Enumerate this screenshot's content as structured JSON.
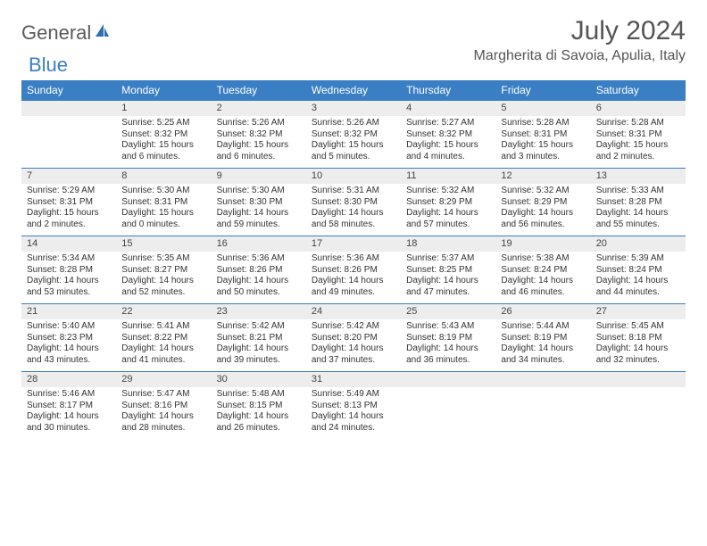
{
  "brand": {
    "general": "General",
    "blue": "Blue"
  },
  "title": "July 2024",
  "location": "Margherita di Savoia, Apulia, Italy",
  "colors": {
    "header_bg": "#3a7fc4",
    "header_text": "#ffffff",
    "daynum_bg": "#ededed",
    "divider": "#3a7fc4",
    "body_text": "#333333",
    "title_text": "#555555"
  },
  "weekdays": [
    "Sunday",
    "Monday",
    "Tuesday",
    "Wednesday",
    "Thursday",
    "Friday",
    "Saturday"
  ],
  "weeks": [
    [
      {
        "n": "",
        "sr": "",
        "ss": "",
        "dl": ""
      },
      {
        "n": "1",
        "sr": "Sunrise: 5:25 AM",
        "ss": "Sunset: 8:32 PM",
        "dl": "Daylight: 15 hours and 6 minutes."
      },
      {
        "n": "2",
        "sr": "Sunrise: 5:26 AM",
        "ss": "Sunset: 8:32 PM",
        "dl": "Daylight: 15 hours and 6 minutes."
      },
      {
        "n": "3",
        "sr": "Sunrise: 5:26 AM",
        "ss": "Sunset: 8:32 PM",
        "dl": "Daylight: 15 hours and 5 minutes."
      },
      {
        "n": "4",
        "sr": "Sunrise: 5:27 AM",
        "ss": "Sunset: 8:32 PM",
        "dl": "Daylight: 15 hours and 4 minutes."
      },
      {
        "n": "5",
        "sr": "Sunrise: 5:28 AM",
        "ss": "Sunset: 8:31 PM",
        "dl": "Daylight: 15 hours and 3 minutes."
      },
      {
        "n": "6",
        "sr": "Sunrise: 5:28 AM",
        "ss": "Sunset: 8:31 PM",
        "dl": "Daylight: 15 hours and 2 minutes."
      }
    ],
    [
      {
        "n": "7",
        "sr": "Sunrise: 5:29 AM",
        "ss": "Sunset: 8:31 PM",
        "dl": "Daylight: 15 hours and 2 minutes."
      },
      {
        "n": "8",
        "sr": "Sunrise: 5:30 AM",
        "ss": "Sunset: 8:31 PM",
        "dl": "Daylight: 15 hours and 0 minutes."
      },
      {
        "n": "9",
        "sr": "Sunrise: 5:30 AM",
        "ss": "Sunset: 8:30 PM",
        "dl": "Daylight: 14 hours and 59 minutes."
      },
      {
        "n": "10",
        "sr": "Sunrise: 5:31 AM",
        "ss": "Sunset: 8:30 PM",
        "dl": "Daylight: 14 hours and 58 minutes."
      },
      {
        "n": "11",
        "sr": "Sunrise: 5:32 AM",
        "ss": "Sunset: 8:29 PM",
        "dl": "Daylight: 14 hours and 57 minutes."
      },
      {
        "n": "12",
        "sr": "Sunrise: 5:32 AM",
        "ss": "Sunset: 8:29 PM",
        "dl": "Daylight: 14 hours and 56 minutes."
      },
      {
        "n": "13",
        "sr": "Sunrise: 5:33 AM",
        "ss": "Sunset: 8:28 PM",
        "dl": "Daylight: 14 hours and 55 minutes."
      }
    ],
    [
      {
        "n": "14",
        "sr": "Sunrise: 5:34 AM",
        "ss": "Sunset: 8:28 PM",
        "dl": "Daylight: 14 hours and 53 minutes."
      },
      {
        "n": "15",
        "sr": "Sunrise: 5:35 AM",
        "ss": "Sunset: 8:27 PM",
        "dl": "Daylight: 14 hours and 52 minutes."
      },
      {
        "n": "16",
        "sr": "Sunrise: 5:36 AM",
        "ss": "Sunset: 8:26 PM",
        "dl": "Daylight: 14 hours and 50 minutes."
      },
      {
        "n": "17",
        "sr": "Sunrise: 5:36 AM",
        "ss": "Sunset: 8:26 PM",
        "dl": "Daylight: 14 hours and 49 minutes."
      },
      {
        "n": "18",
        "sr": "Sunrise: 5:37 AM",
        "ss": "Sunset: 8:25 PM",
        "dl": "Daylight: 14 hours and 47 minutes."
      },
      {
        "n": "19",
        "sr": "Sunrise: 5:38 AM",
        "ss": "Sunset: 8:24 PM",
        "dl": "Daylight: 14 hours and 46 minutes."
      },
      {
        "n": "20",
        "sr": "Sunrise: 5:39 AM",
        "ss": "Sunset: 8:24 PM",
        "dl": "Daylight: 14 hours and 44 minutes."
      }
    ],
    [
      {
        "n": "21",
        "sr": "Sunrise: 5:40 AM",
        "ss": "Sunset: 8:23 PM",
        "dl": "Daylight: 14 hours and 43 minutes."
      },
      {
        "n": "22",
        "sr": "Sunrise: 5:41 AM",
        "ss": "Sunset: 8:22 PM",
        "dl": "Daylight: 14 hours and 41 minutes."
      },
      {
        "n": "23",
        "sr": "Sunrise: 5:42 AM",
        "ss": "Sunset: 8:21 PM",
        "dl": "Daylight: 14 hours and 39 minutes."
      },
      {
        "n": "24",
        "sr": "Sunrise: 5:42 AM",
        "ss": "Sunset: 8:20 PM",
        "dl": "Daylight: 14 hours and 37 minutes."
      },
      {
        "n": "25",
        "sr": "Sunrise: 5:43 AM",
        "ss": "Sunset: 8:19 PM",
        "dl": "Daylight: 14 hours and 36 minutes."
      },
      {
        "n": "26",
        "sr": "Sunrise: 5:44 AM",
        "ss": "Sunset: 8:19 PM",
        "dl": "Daylight: 14 hours and 34 minutes."
      },
      {
        "n": "27",
        "sr": "Sunrise: 5:45 AM",
        "ss": "Sunset: 8:18 PM",
        "dl": "Daylight: 14 hours and 32 minutes."
      }
    ],
    [
      {
        "n": "28",
        "sr": "Sunrise: 5:46 AM",
        "ss": "Sunset: 8:17 PM",
        "dl": "Daylight: 14 hours and 30 minutes."
      },
      {
        "n": "29",
        "sr": "Sunrise: 5:47 AM",
        "ss": "Sunset: 8:16 PM",
        "dl": "Daylight: 14 hours and 28 minutes."
      },
      {
        "n": "30",
        "sr": "Sunrise: 5:48 AM",
        "ss": "Sunset: 8:15 PM",
        "dl": "Daylight: 14 hours and 26 minutes."
      },
      {
        "n": "31",
        "sr": "Sunrise: 5:49 AM",
        "ss": "Sunset: 8:13 PM",
        "dl": "Daylight: 14 hours and 24 minutes."
      },
      {
        "n": "",
        "sr": "",
        "ss": "",
        "dl": ""
      },
      {
        "n": "",
        "sr": "",
        "ss": "",
        "dl": ""
      },
      {
        "n": "",
        "sr": "",
        "ss": "",
        "dl": ""
      }
    ]
  ]
}
